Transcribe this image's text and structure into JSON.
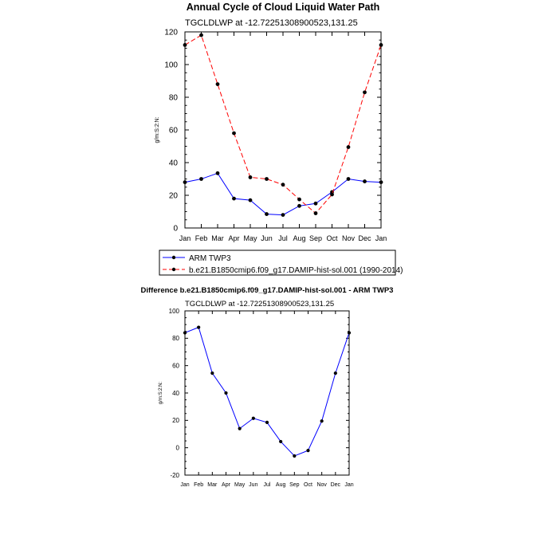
{
  "page_title": "Annual Cycle of Cloud Liquid Water Path",
  "chart_data": [
    {
      "type": "line",
      "title": "Annual Cycle of Cloud Liquid Water Path",
      "subtitle": "TGCLDLWP at -12.72251308900523,131.25",
      "xlabel": "",
      "ylabel": "g/m:S:2:N:",
      "categories": [
        "Jan",
        "Feb",
        "Mar",
        "Apr",
        "May",
        "Jun",
        "Jul",
        "Aug",
        "Sep",
        "Oct",
        "Nov",
        "Dec",
        "Jan"
      ],
      "ylim": [
        0,
        120
      ],
      "yticks": [
        0,
        20,
        40,
        60,
        80,
        100,
        120
      ],
      "y_tick_labels": [
        "0",
        "20",
        "40",
        "60",
        "80",
        "100",
        "120"
      ],
      "series": [
        {
          "name": "ARM TWP3",
          "color": "#0000ff",
          "dash": "solid",
          "values": [
            28.0,
            30.0,
            33.5,
            18.0,
            17.0,
            8.5,
            8.0,
            13.5,
            15.0,
            22.0,
            30.0,
            28.5,
            28.0
          ]
        },
        {
          "name": "b.e21.B1850cmip6.f09_g17.DAMIP-hist-sol.001 (1990-2014)",
          "color": "#ff0000",
          "dash": "dashed",
          "values": [
            112.0,
            118.0,
            88.0,
            58.0,
            31.0,
            30.0,
            26.5,
            17.5,
            9.0,
            20.5,
            49.5,
            83.0,
            112.0
          ]
        }
      ],
      "legend": "below"
    },
    {
      "type": "line",
      "title": "Difference b.e21.B1850cmip6.f09_g17.DAMIP-hist-sol.001 - ARM TWP3",
      "subtitle": "TGCLDLWP at -12.72251308900523,131.25",
      "xlabel": "",
      "ylabel": "g/m:S:2:N:",
      "categories": [
        "Jan",
        "Feb",
        "Mar",
        "Apr",
        "May",
        "Jun",
        "Jul",
        "Aug",
        "Sep",
        "Oct",
        "Nov",
        "Dec",
        "Jan"
      ],
      "ylim": [
        -20,
        100
      ],
      "yticks": [
        -20,
        0,
        20,
        40,
        60,
        80,
        100
      ],
      "y_tick_labels": [
        "-20",
        "0",
        "20",
        "40",
        "60",
        "80",
        "100"
      ],
      "series": [
        {
          "name": "Difference",
          "color": "#0000ff",
          "dash": "solid",
          "values": [
            84.0,
            88.0,
            54.5,
            40.0,
            14.0,
            21.5,
            18.5,
            4.5,
            -6.0,
            -2.0,
            19.5,
            54.5,
            84.0
          ]
        }
      ]
    }
  ]
}
